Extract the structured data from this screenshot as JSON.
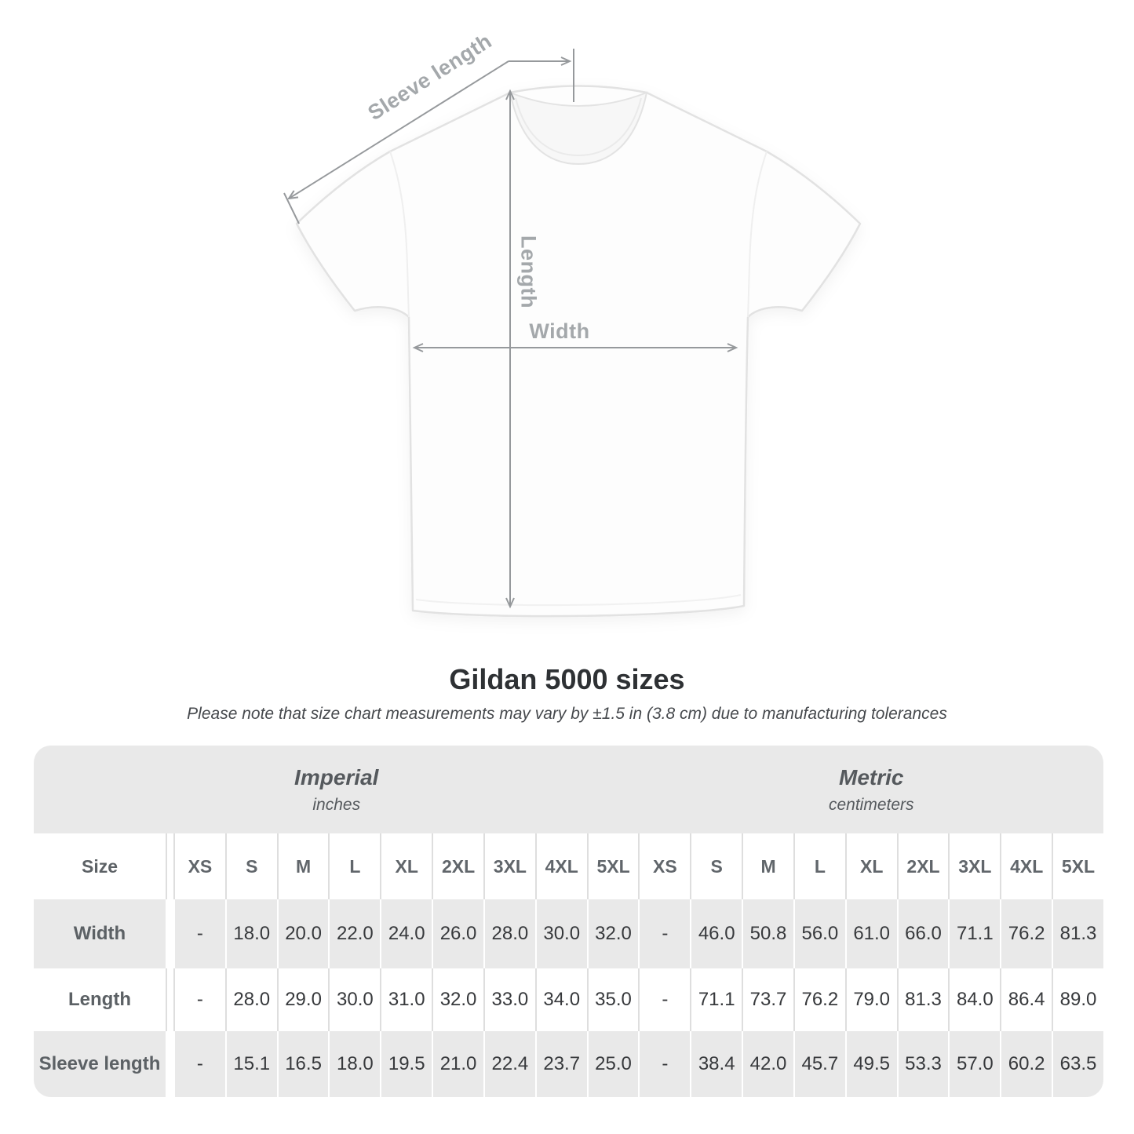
{
  "diagram": {
    "sleeve_length_label": "Sleeve length",
    "length_label": "Length",
    "width_label": "Width"
  },
  "heading": {
    "title": "Gildan 5000 sizes",
    "subtitle": "Please note that size chart measurements may vary by ±1.5 in (3.8 cm) due to manufacturing tolerances"
  },
  "table": {
    "unit_groups": [
      {
        "label": "Imperial",
        "sublabel": "inches"
      },
      {
        "label": "Metric",
        "sublabel": "centimeters"
      }
    ],
    "size_column_header": "Size",
    "sizes": [
      "XS",
      "S",
      "M",
      "L",
      "XL",
      "2XL",
      "3XL",
      "4XL",
      "5XL"
    ],
    "rows": [
      {
        "label": "Width",
        "imperial": [
          "-",
          "18.0",
          "20.0",
          "22.0",
          "24.0",
          "26.0",
          "28.0",
          "30.0",
          "32.0"
        ],
        "metric": [
          "-",
          "46.0",
          "50.8",
          "56.0",
          "61.0",
          "66.0",
          "71.1",
          "76.2",
          "81.3"
        ]
      },
      {
        "label": "Length",
        "imperial": [
          "-",
          "28.0",
          "29.0",
          "30.0",
          "31.0",
          "32.0",
          "33.0",
          "34.0",
          "35.0"
        ],
        "metric": [
          "-",
          "71.1",
          "73.7",
          "76.2",
          "79.0",
          "81.3",
          "84.0",
          "86.4",
          "89.0"
        ]
      },
      {
        "label": "Sleeve length",
        "imperial": [
          "-",
          "15.1",
          "16.5",
          "18.0",
          "19.5",
          "21.0",
          "22.4",
          "23.7",
          "25.0"
        ],
        "metric": [
          "-",
          "38.4",
          "42.0",
          "45.7",
          "49.5",
          "53.3",
          "57.0",
          "60.2",
          "63.5"
        ]
      }
    ]
  },
  "colors": {
    "band_gray": "#e9e9e9",
    "row_gray": "#e9e9e9",
    "separator_gray": "#dedede",
    "dimension_line": "#96999c",
    "diagram_label": "#a4a8ab",
    "shirt_outline": "#e2e2e2"
  }
}
